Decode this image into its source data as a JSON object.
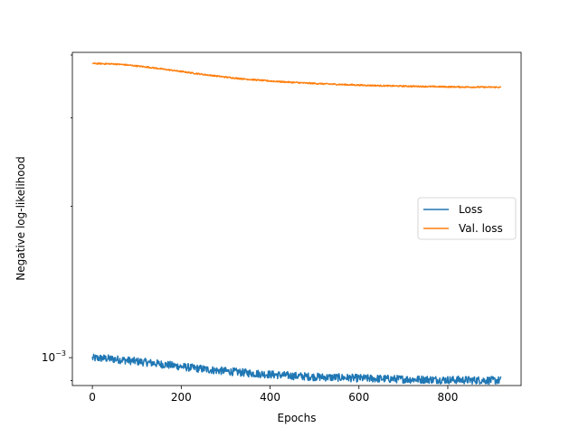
{
  "chart_data": {
    "type": "line",
    "title": "",
    "xlabel": "Epochs",
    "ylabel": "Negative log-likelihood",
    "xlim": [
      -45,
      965
    ],
    "ylim": [
      0.00088,
      0.00405
    ],
    "yscale": "log",
    "grid": false,
    "legend_position": "center-right",
    "x_ticks": [
      0,
      200,
      400,
      600,
      800
    ],
    "x_tick_labels": [
      "0",
      "200",
      "400",
      "600",
      "800"
    ],
    "y_ticks": [
      0.001
    ],
    "y_tick_labels": [
      "10^-3"
    ],
    "series": [
      {
        "name": "Loss",
        "color": "#1f77b4",
        "x": [
          0,
          25,
          50,
          75,
          100,
          125,
          150,
          175,
          200,
          225,
          250,
          275,
          300,
          325,
          350,
          375,
          400,
          425,
          450,
          475,
          500,
          525,
          550,
          575,
          600,
          625,
          650,
          675,
          700,
          725,
          750,
          775,
          800,
          825,
          850,
          875,
          900,
          920
        ],
        "y": [
          0.000998,
          0.000997,
          0.000993,
          0.000988,
          0.000983,
          0.000978,
          0.000972,
          0.000966,
          0.00096,
          0.000954,
          0.000949,
          0.000944,
          0.00094,
          0.000936,
          0.000932,
          0.000929,
          0.000926,
          0.000923,
          0.00092,
          0.000918,
          0.000916,
          0.000914,
          0.000913,
          0.000912,
          0.00091,
          0.000909,
          0.000908,
          0.000907,
          0.000906,
          0.000905,
          0.000905,
          0.000904,
          0.000903,
          0.000903,
          0.000902,
          0.000902,
          0.000901,
          0.000901
        ],
        "noise": 0.018
      },
      {
        "name": "Val. loss",
        "color": "#ff7f0e",
        "x": [
          0,
          25,
          50,
          75,
          100,
          125,
          150,
          175,
          200,
          225,
          250,
          275,
          300,
          325,
          350,
          375,
          400,
          425,
          450,
          475,
          500,
          525,
          550,
          575,
          600,
          625,
          650,
          675,
          700,
          725,
          750,
          775,
          800,
          825,
          850,
          875,
          900,
          920
        ],
        "y": [
          0.00385,
          0.003845,
          0.00384,
          0.003825,
          0.003805,
          0.003785,
          0.00376,
          0.003735,
          0.00371,
          0.003685,
          0.00366,
          0.003638,
          0.003616,
          0.003597,
          0.00358,
          0.003566,
          0.003552,
          0.00354,
          0.00353,
          0.00352,
          0.003512,
          0.003505,
          0.003498,
          0.003492,
          0.003486,
          0.003481,
          0.003477,
          0.003473,
          0.00347,
          0.003467,
          0.003464,
          0.003461,
          0.003459,
          0.003457,
          0.003455,
          0.003454,
          0.003453,
          0.003452
        ],
        "noise": 0.003
      }
    ]
  }
}
